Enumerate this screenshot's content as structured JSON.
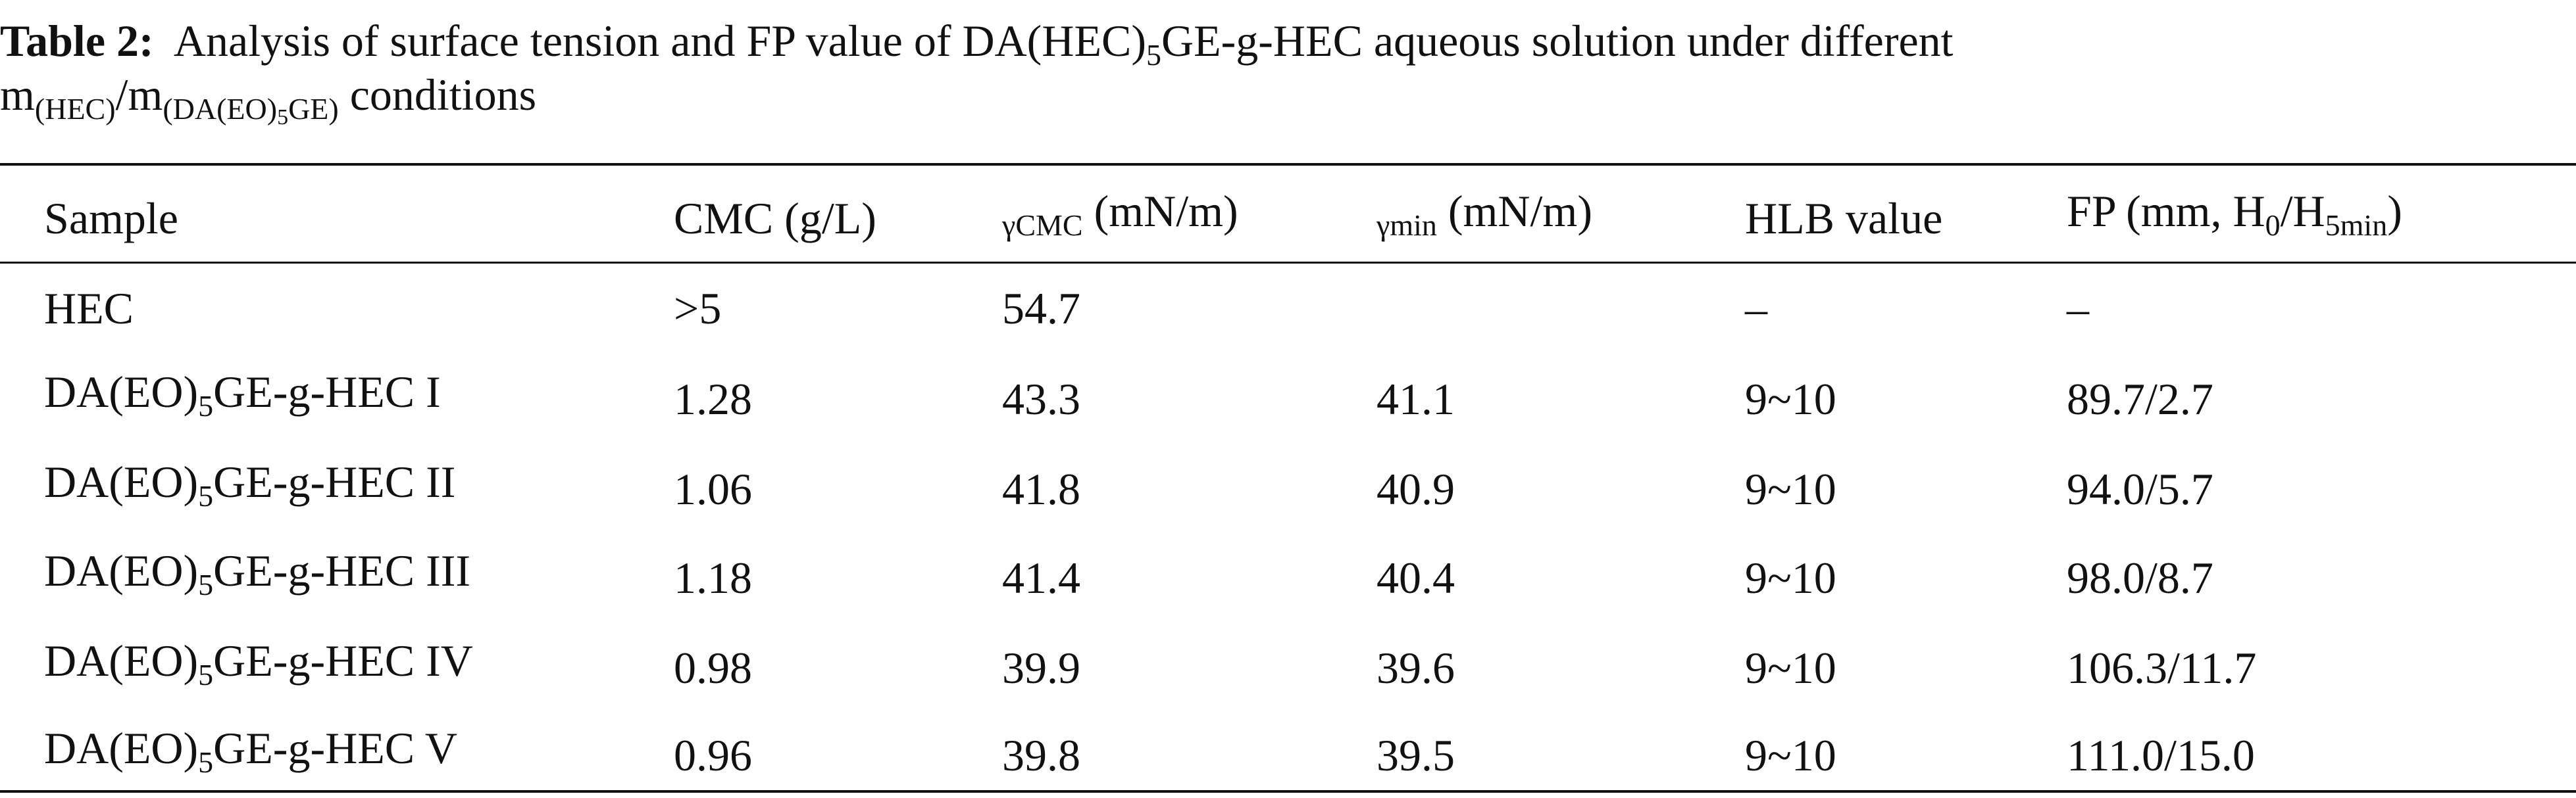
{
  "caption": {
    "lines": [
      [
        {
          "b": "Table 2:"
        },
        {
          "t": "  Analysis of surface tension and FP value of DA(HEC)"
        },
        {
          "sub": "5"
        },
        {
          "t": "GE-g-HEC aqueous solution under different"
        }
      ],
      [
        {
          "t": "m"
        },
        {
          "sub": "(HEC)"
        },
        {
          "t": "/m"
        },
        {
          "sub": "(DA(EO)"
        },
        {
          "subsub": "5"
        },
        {
          "sub": "GE)"
        },
        {
          "t": " conditions"
        }
      ]
    ]
  },
  "table": {
    "header": [
      [
        {
          "t": "Sample"
        }
      ],
      [
        {
          "t": "CMC (g/L)"
        }
      ],
      [
        {
          "sub": "γCMC"
        },
        {
          "t": " (mN/m)"
        }
      ],
      [
        {
          "sub": "γmin"
        },
        {
          "t": " (mN/m)"
        }
      ],
      [
        {
          "t": "HLB value"
        }
      ],
      [
        {
          "t": "FP (mm, H"
        },
        {
          "sub": "0"
        },
        {
          "t": "/H"
        },
        {
          "sub": "5min"
        },
        {
          "t": ")"
        }
      ]
    ],
    "rows": [
      [
        [
          {
            "t": "HEC"
          }
        ],
        [
          {
            "t": ">5"
          }
        ],
        [
          {
            "t": "54.7"
          }
        ],
        null,
        [
          {
            "t": "–"
          }
        ],
        [
          {
            "t": "–"
          }
        ]
      ],
      [
        [
          {
            "t": "DA(EO)"
          },
          {
            "sub": "5"
          },
          {
            "t": "GE-g-HEC I"
          }
        ],
        [
          {
            "t": "1.28"
          }
        ],
        [
          {
            "t": "43.3"
          }
        ],
        [
          {
            "t": "41.1"
          }
        ],
        [
          {
            "t": "9~10"
          }
        ],
        [
          {
            "t": "89.7/2.7"
          }
        ]
      ],
      [
        [
          {
            "t": "DA(EO)"
          },
          {
            "sub": "5"
          },
          {
            "t": "GE-g-HEC II"
          }
        ],
        [
          {
            "t": "1.06"
          }
        ],
        [
          {
            "t": "41.8"
          }
        ],
        [
          {
            "t": "40.9"
          }
        ],
        [
          {
            "t": "9~10"
          }
        ],
        [
          {
            "t": "94.0/5.7"
          }
        ]
      ],
      [
        [
          {
            "t": "DA(EO)"
          },
          {
            "sub": "5"
          },
          {
            "t": "GE-g-HEC III"
          }
        ],
        [
          {
            "t": "1.18"
          }
        ],
        [
          {
            "t": "41.4"
          }
        ],
        [
          {
            "t": "40.4"
          }
        ],
        [
          {
            "t": "9~10"
          }
        ],
        [
          {
            "t": "98.0/8.7"
          }
        ]
      ],
      [
        [
          {
            "t": "DA(EO)"
          },
          {
            "sub": "5"
          },
          {
            "t": "GE-g-HEC IV"
          }
        ],
        [
          {
            "t": "0.98"
          }
        ],
        [
          {
            "t": "39.9"
          }
        ],
        [
          {
            "t": "39.6"
          }
        ],
        [
          {
            "t": "9~10"
          }
        ],
        [
          {
            "t": "106.3/11.7"
          }
        ]
      ],
      [
        [
          {
            "t": "DA(EO)"
          },
          {
            "sub": "5"
          },
          {
            "t": "GE-g-HEC V"
          }
        ],
        [
          {
            "t": "0.96"
          }
        ],
        [
          {
            "t": "39.8"
          }
        ],
        [
          {
            "t": "39.5"
          }
        ],
        [
          {
            "t": "9~10"
          }
        ],
        [
          {
            "t": "111.0/15.0"
          }
        ]
      ]
    ]
  }
}
